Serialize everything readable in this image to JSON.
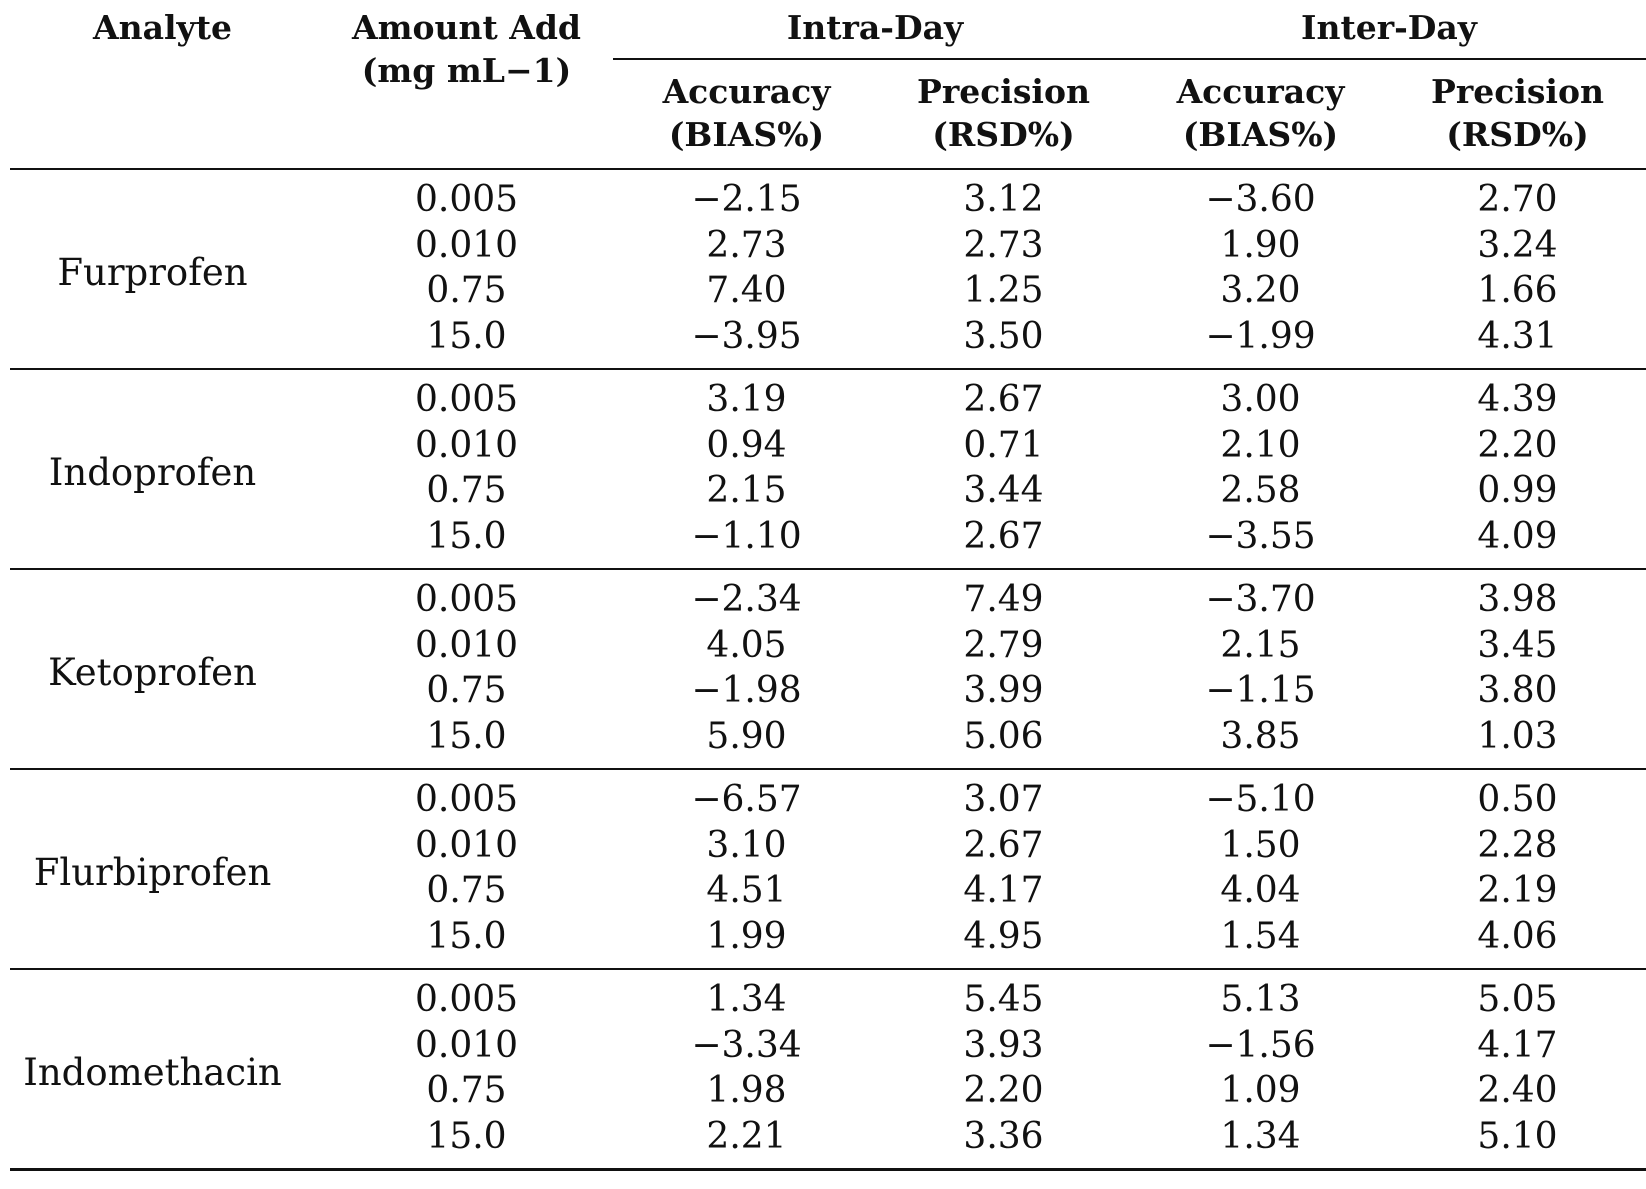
{
  "table": {
    "header": {
      "analyte": "Analyte",
      "amount_line1": "Amount Add",
      "amount_line2": "(mg mL−1)",
      "groups": [
        "Intra-Day",
        "Inter-Day"
      ],
      "columns": [
        {
          "line1": "Accuracy",
          "line2": "(BIAS%)"
        },
        {
          "line1": "Precision",
          "line2": "(RSD%)"
        },
        {
          "line1": "Accuracy",
          "line2": "(BIAS%)"
        },
        {
          "line1": "Precision",
          "line2": "(RSD%)"
        }
      ]
    },
    "groups": [
      {
        "analyte": "Furprofen",
        "rows": [
          [
            "0.005",
            "−2.15",
            "3.12",
            "−3.60",
            "2.70"
          ],
          [
            "0.010",
            "2.73",
            "2.73",
            "1.90",
            "3.24"
          ],
          [
            "0.75",
            "7.40",
            "1.25",
            "3.20",
            "1.66"
          ],
          [
            "15.0",
            "−3.95",
            "3.50",
            "−1.99",
            "4.31"
          ]
        ]
      },
      {
        "analyte": "Indoprofen",
        "rows": [
          [
            "0.005",
            "3.19",
            "2.67",
            "3.00",
            "4.39"
          ],
          [
            "0.010",
            "0.94",
            "0.71",
            "2.10",
            "2.20"
          ],
          [
            "0.75",
            "2.15",
            "3.44",
            "2.58",
            "0.99"
          ],
          [
            "15.0",
            "−1.10",
            "2.67",
            "−3.55",
            "4.09"
          ]
        ]
      },
      {
        "analyte": "Ketoprofen",
        "rows": [
          [
            "0.005",
            "−2.34",
            "7.49",
            "−3.70",
            "3.98"
          ],
          [
            "0.010",
            "4.05",
            "2.79",
            "2.15",
            "3.45"
          ],
          [
            "0.75",
            "−1.98",
            "3.99",
            "−1.15",
            "3.80"
          ],
          [
            "15.0",
            "5.90",
            "5.06",
            "3.85",
            "1.03"
          ]
        ]
      },
      {
        "analyte": "Flurbiprofen",
        "rows": [
          [
            "0.005",
            "−6.57",
            "3.07",
            "−5.10",
            "0.50"
          ],
          [
            "0.010",
            "3.10",
            "2.67",
            "1.50",
            "2.28"
          ],
          [
            "0.75",
            "4.51",
            "4.17",
            "4.04",
            "2.19"
          ],
          [
            "15.0",
            "1.99",
            "4.95",
            "1.54",
            "4.06"
          ]
        ]
      },
      {
        "analyte": "Indomethacin",
        "rows": [
          [
            "0.005",
            "1.34",
            "5.45",
            "5.13",
            "5.05"
          ],
          [
            "0.010",
            "−3.34",
            "3.93",
            "−1.56",
            "4.17"
          ],
          [
            "0.75",
            "1.98",
            "2.20",
            "1.09",
            "2.40"
          ],
          [
            "15.0",
            "2.21",
            "3.36",
            "1.34",
            "5.10"
          ]
        ]
      }
    ]
  }
}
